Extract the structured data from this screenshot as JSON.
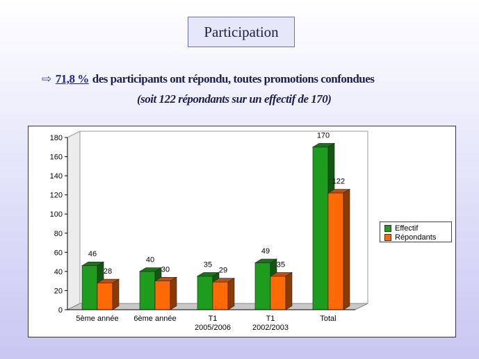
{
  "slide": {
    "title": "Participation",
    "headline": {
      "arrow": "⇨",
      "percent": "71,8 %",
      "text": "des participants ont répondu, toutes promotions confondues"
    },
    "subline": "(soit 122 répondants sur un effectif de 170)"
  },
  "colors": {
    "effectif": "#1e9c1e",
    "repondants": "#ff6a06"
  },
  "chart_data": {
    "type": "bar",
    "categories": [
      [
        "5ème année"
      ],
      [
        "6ème année"
      ],
      [
        "T1",
        "2005/2006"
      ],
      [
        "T1",
        "2002/2003"
      ],
      [
        "Total"
      ]
    ],
    "series": [
      {
        "name": "Effectif",
        "values": [
          46,
          40,
          35,
          49,
          170
        ]
      },
      {
        "name": "Répondants",
        "values": [
          28,
          30,
          29,
          35,
          122
        ]
      }
    ],
    "ylim": [
      0,
      180
    ],
    "yticks": [
      0,
      20,
      40,
      60,
      80,
      100,
      120,
      140,
      160,
      180
    ],
    "legend": "right",
    "grid": false
  }
}
